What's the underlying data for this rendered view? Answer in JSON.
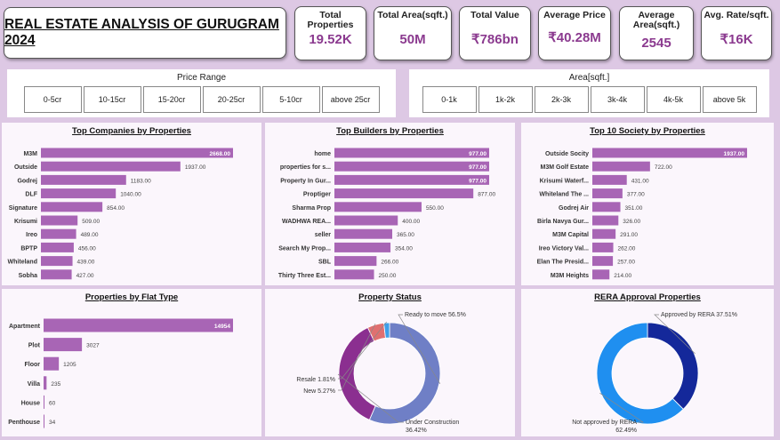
{
  "title": "REAL ESTATE ANALYSIS OF GURUGRAM 2024",
  "kpis": [
    {
      "label": "Total Properties",
      "value": "19.52K"
    },
    {
      "label": "Total Area(sqft.)",
      "value": "50M"
    },
    {
      "label": "Total Value",
      "value": "₹786bn"
    },
    {
      "label": "Average Price",
      "value": "₹40.28M"
    },
    {
      "label": "Average Area(sqft.)",
      "value": "2545"
    },
    {
      "label": "Avg. Rate/sqft.",
      "value": "₹16K"
    }
  ],
  "price_filter": {
    "title": "Price Range",
    "options": [
      "0-5cr",
      "10-15cr",
      "15-20cr",
      "20-25cr",
      "5-10cr",
      "above 25cr"
    ]
  },
  "area_filter": {
    "title": "Area[sqft.]",
    "options": [
      "0-1k",
      "1k-2k",
      "2k-3k",
      "3k-4k",
      "4k-5k",
      "above 5k"
    ]
  },
  "colors": {
    "bar": "#a865b5",
    "ready": "#6f7fc6",
    "under": "#8b2f90",
    "new": "#e07070",
    "resale": "#3f9fe8",
    "rera_yes": "#14289a",
    "rera_no": "#1f8ff0"
  },
  "chart_data": [
    {
      "id": "companies",
      "type": "bar",
      "title": "Top Companies by Properties",
      "categories": [
        "M3M",
        "Outside",
        "Godrej",
        "DLF",
        "Signature",
        "Krisumi",
        "Ireo",
        "BPTP",
        "Whiteland",
        "Sobha"
      ],
      "values": [
        2668,
        1937,
        1183,
        1040,
        854,
        509,
        489,
        456,
        439,
        427
      ],
      "labels": [
        "2668.00",
        "1937.00",
        "1183.00",
        "1040.00",
        "854.00",
        "509.00",
        "489.00",
        "456.00",
        "439.00",
        "427.00"
      ],
      "xlim": [
        0,
        2668
      ]
    },
    {
      "id": "builders",
      "type": "bar",
      "title": "Top Builders by Properties",
      "categories": [
        "home",
        "properties for s...",
        "Property In Gur...",
        "Proptiger",
        "Sharma Prop",
        "WADHWA REA...",
        "seller",
        "Search My Prop...",
        "SBL",
        "Thirty Three Est..."
      ],
      "values": [
        977,
        977,
        977,
        877,
        550,
        400,
        365,
        354,
        266,
        250
      ],
      "labels": [
        "977.00",
        "977.00",
        "977.00",
        "877.00",
        "550.00",
        "400.00",
        "365.00",
        "354.00",
        "266.00",
        "250.00"
      ],
      "xlim": [
        0,
        977
      ]
    },
    {
      "id": "society",
      "type": "bar",
      "title": "Top 10 Society by Properties",
      "categories": [
        "Outside Socity",
        "M3M Golf Estate",
        "Krisumi Waterf...",
        "Whiteland The ...",
        "Godrej Air",
        "Birla Navya Gur...",
        "M3M Capital",
        "Ireo Victory Val...",
        "Elan The Presid...",
        "M3M Heights"
      ],
      "values": [
        1937,
        722,
        431,
        377,
        351,
        326,
        291,
        262,
        257,
        214
      ],
      "labels": [
        "1937.00",
        "722.00",
        "431.00",
        "377.00",
        "351.00",
        "326.00",
        "291.00",
        "262.00",
        "257.00",
        "214.00"
      ],
      "xlim": [
        0,
        1937
      ]
    },
    {
      "id": "flat",
      "type": "bar",
      "title": "Properties by Flat Type",
      "categories": [
        "Apartment",
        "Plot",
        "Floor",
        "Villa",
        "House",
        "Penthouse"
      ],
      "values": [
        14954,
        3027,
        1205,
        235,
        60,
        34
      ],
      "labels": [
        "14954",
        "3027",
        "1205",
        "235",
        "60",
        "34"
      ],
      "xlim": [
        0,
        14954
      ]
    },
    {
      "id": "status",
      "type": "pie",
      "title": "Property Status",
      "categories": [
        "Ready to move",
        "Under Construction",
        "New",
        "Resale"
      ],
      "values": [
        56.5,
        36.42,
        5.27,
        1.81
      ],
      "labels": [
        "Ready to move 56.5%",
        "Under Construction 36.42%",
        "New 5.27%",
        "Resale 1.81%"
      ]
    },
    {
      "id": "rera",
      "type": "pie",
      "title": "RERA Approval Properties",
      "categories": [
        "Approved by RERA",
        "Not approved by RERA"
      ],
      "values": [
        37.51,
        62.49
      ],
      "labels": [
        "Approved by RERA 37.51%",
        "Not approved by RERA 62.49%"
      ]
    }
  ]
}
